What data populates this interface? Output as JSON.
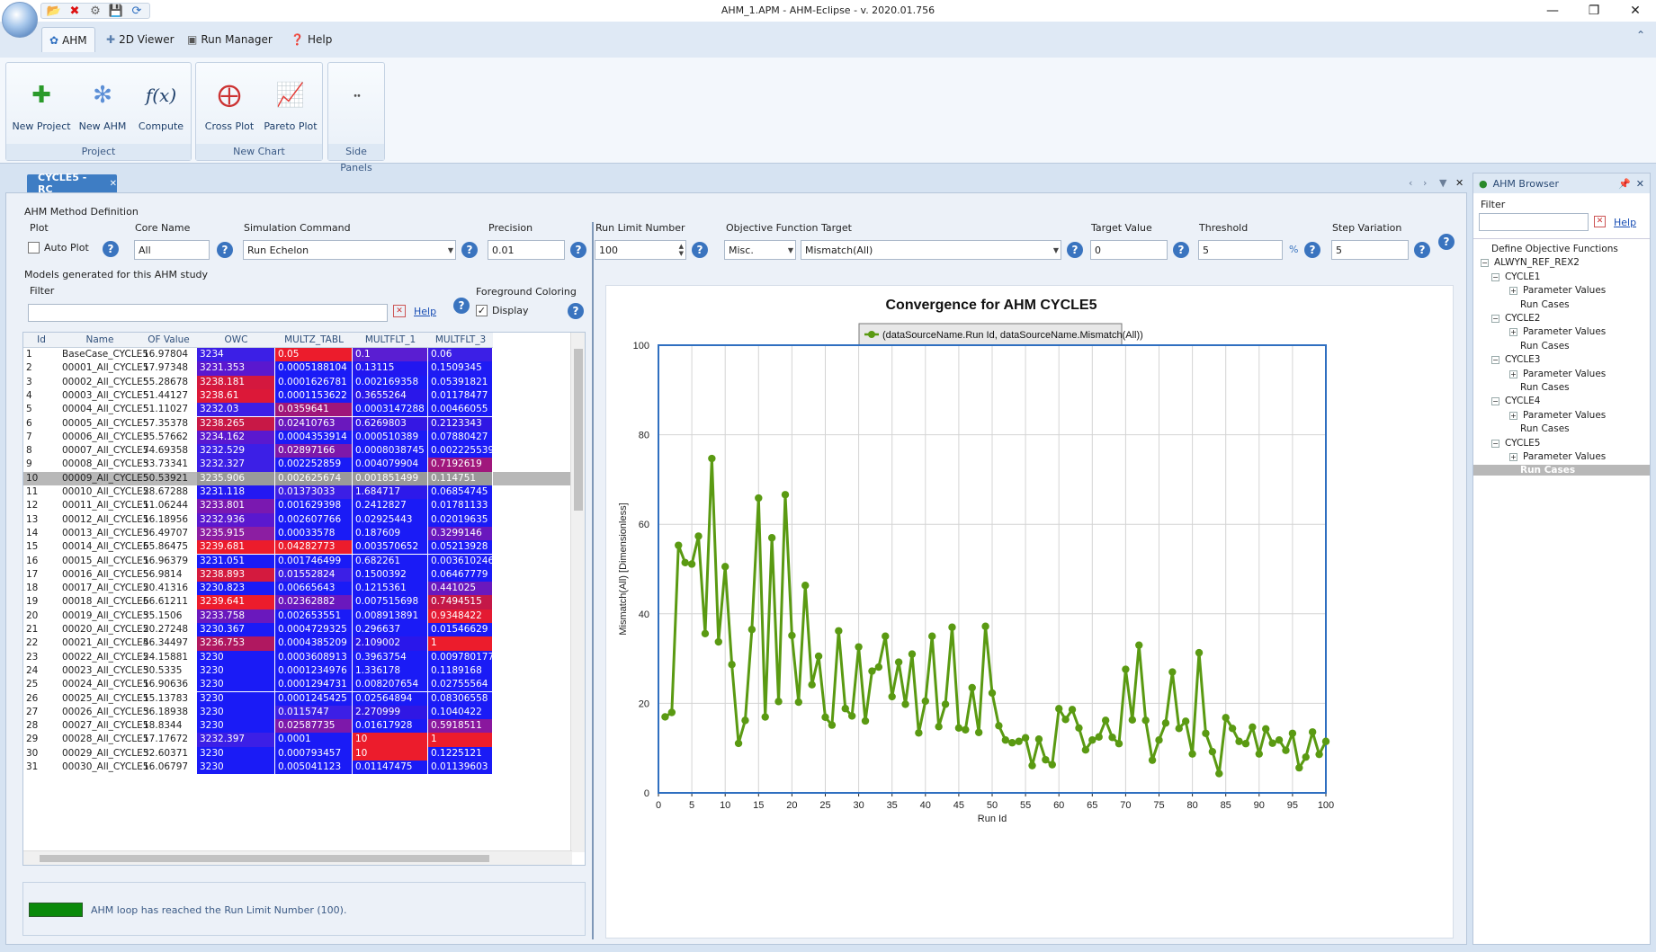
{
  "window": {
    "title": "AHM_1.APM - AHM-Eclipse - v. 2020.01.756"
  },
  "ribbon": {
    "tabs": [
      "AHM",
      "2D Viewer",
      "Run Manager",
      "Help"
    ],
    "groups": [
      {
        "label": "Project",
        "buttons": [
          "New Project",
          "New AHM",
          "Compute"
        ]
      },
      {
        "label": "New Chart",
        "buttons": [
          "Cross Plot",
          "Pareto Plot"
        ]
      },
      {
        "label": "Side Panels",
        "buttons": []
      }
    ]
  },
  "doc_tab": {
    "label": "CYCLE5 - RC"
  },
  "method": {
    "section_title": "AHM Method Definition",
    "plot_label": "Plot",
    "auto_plot_label": "Auto Plot",
    "core_name_label": "Core Name",
    "core_name_value": "All",
    "sim_cmd_label": "Simulation Command",
    "sim_cmd_value": "Run Echelon",
    "precision_label": "Precision",
    "precision_value": "0.01",
    "run_limit_label": "Run Limit Number",
    "run_limit_value": "100",
    "obj_target_label": "Objective Function Target",
    "obj_target_type": "Misc.",
    "obj_target_value": "Mismatch(All)",
    "target_value_label": "Target Value",
    "target_value": "0",
    "threshold_label": "Threshold",
    "threshold_value": "5",
    "threshold_unit": "%",
    "step_label": "Step Variation",
    "step_value": "5"
  },
  "models": {
    "section_title": "Models generated for this AHM study",
    "filter_label": "Filter",
    "filter_help": "Help",
    "fg_label": "Foreground Coloring",
    "display_label": "Display",
    "columns": [
      "Id",
      "Name",
      "OF Value",
      "OWC",
      "MULTZ_TABL",
      "MULTFLT_1",
      "MULTFLT_3"
    ],
    "rows": [
      [
        "1",
        "BaseCase_CYCLE5",
        "16.97804",
        "3234",
        "0.05",
        "0.1",
        "0.06"
      ],
      [
        "2",
        "00001_All_CYCLE5",
        "17.97348",
        "3231.353",
        "0.0005188104",
        "0.13115",
        "0.1509345"
      ],
      [
        "3",
        "00002_All_CYCLE5",
        "55.28678",
        "3238.181",
        "0.0001626781",
        "0.002169358",
        "0.05391821"
      ],
      [
        "4",
        "00003_All_CYCLE5",
        "51.44127",
        "3238.61",
        "0.0001153622",
        "0.3655264",
        "0.01178477"
      ],
      [
        "5",
        "00004_All_CYCLE5",
        "51.11027",
        "3232.03",
        "0.0359641",
        "0.0003147288",
        "0.00466055"
      ],
      [
        "6",
        "00005_All_CYCLE5",
        "57.35378",
        "3238.265",
        "0.02410763",
        "0.6269803",
        "0.2123343"
      ],
      [
        "7",
        "00006_All_CYCLE5",
        "35.57662",
        "3234.162",
        "0.0004353914",
        "0.000510389",
        "0.07880427"
      ],
      [
        "8",
        "00007_All_CYCLE5",
        "74.69358",
        "3232.529",
        "0.02897166",
        "0.0008038745",
        "0.002225539"
      ],
      [
        "9",
        "00008_All_CYCLE5",
        "33.73341",
        "3232.327",
        "0.002252859",
        "0.004079904",
        "0.7192619"
      ],
      [
        "10",
        "00009_All_CYCLE5",
        "50.53921",
        "3235.906",
        "0.002625674",
        "0.001851499",
        "0.114751"
      ],
      [
        "11",
        "00010_All_CYCLE5",
        "28.67288",
        "3231.118",
        "0.01373033",
        "1.684717",
        "0.06854745"
      ],
      [
        "12",
        "00011_All_CYCLE5",
        "11.06244",
        "3233.801",
        "0.001629398",
        "0.2412827",
        "0.01781133"
      ],
      [
        "13",
        "00012_All_CYCLE5",
        "16.18956",
        "3232.936",
        "0.002607766",
        "0.02925443",
        "0.02019635"
      ],
      [
        "14",
        "00013_All_CYCLE5",
        "36.49707",
        "3235.915",
        "0.00033578",
        "0.187609",
        "0.3299146"
      ],
      [
        "15",
        "00014_All_CYCLE5",
        "65.86475",
        "3239.681",
        "0.04282773",
        "0.003570652",
        "0.05213928"
      ],
      [
        "16",
        "00015_All_CYCLE5",
        "16.96379",
        "3231.051",
        "0.001746499",
        "0.682261",
        "0.003610246"
      ],
      [
        "17",
        "00016_All_CYCLE5",
        "56.9814",
        "3238.893",
        "0.01552824",
        "0.1500392",
        "0.06467779"
      ],
      [
        "18",
        "00017_All_CYCLE5",
        "20.41316",
        "3230.823",
        "0.00665643",
        "0.1215361",
        "0.441025"
      ],
      [
        "19",
        "00018_All_CYCLE5",
        "66.61211",
        "3239.641",
        "0.02362882",
        "0.007515698",
        "0.7494515"
      ],
      [
        "20",
        "00019_All_CYCLE5",
        "35.1506",
        "3233.758",
        "0.002653551",
        "0.008913891",
        "0.9348422"
      ],
      [
        "21",
        "00020_All_CYCLE5",
        "20.27248",
        "3230.367",
        "0.0004729325",
        "0.296637",
        "0.01546629"
      ],
      [
        "22",
        "00021_All_CYCLE5",
        "46.34497",
        "3236.753",
        "0.0004385209",
        "2.109002",
        "1"
      ],
      [
        "23",
        "00022_All_CYCLE5",
        "24.15881",
        "3230",
        "0.0003608913",
        "0.3963754",
        "0.009780177"
      ],
      [
        "24",
        "00023_All_CYCLE5",
        "30.5335",
        "3230",
        "0.0001234976",
        "1.336178",
        "0.1189168"
      ],
      [
        "25",
        "00024_All_CYCLE5",
        "16.90636",
        "3230",
        "0.0001294731",
        "0.008207654",
        "0.02755564"
      ],
      [
        "26",
        "00025_All_CYCLE5",
        "15.13783",
        "3230",
        "0.0001245425",
        "0.02564894",
        "0.08306558"
      ],
      [
        "27",
        "00026_All_CYCLE5",
        "36.18938",
        "3230",
        "0.0115747",
        "2.270999",
        "0.1040422"
      ],
      [
        "28",
        "00027_All_CYCLE5",
        "18.8344",
        "3230",
        "0.02587735",
        "0.01617928",
        "0.5918511"
      ],
      [
        "29",
        "00028_All_CYCLE5",
        "17.17672",
        "3232.397",
        "0.0001",
        "10",
        "1"
      ],
      [
        "30",
        "00029_All_CYCLE5",
        "32.60371",
        "3230",
        "0.000793457",
        "10",
        "0.1225121"
      ],
      [
        "31",
        "00030_All_CYCLE5",
        "16.06797",
        "3230",
        "0.005041123",
        "0.01147475",
        "0.01139603"
      ]
    ],
    "cell_colors": [
      [
        "#3c1fe6",
        "#ec1c2c",
        "#5a1ed2",
        "#3c1fe6"
      ],
      [
        "#5a18cf",
        "#1a1bf6",
        "#2217f0",
        "#1f1bf3"
      ],
      [
        "#d4183e",
        "#1a1bf6",
        "#1a1bf6",
        "#1a1bf6"
      ],
      [
        "#dc1838",
        "#1a1bf6",
        "#2a17ea",
        "#1a1bf6"
      ],
      [
        "#3c1fe6",
        "#9f167a",
        "#1a1bf6",
        "#1a1bf6"
      ],
      [
        "#c81846",
        "#6a18bd",
        "#3517e3",
        "#3017e4"
      ],
      [
        "#5a18cf",
        "#1a1bf6",
        "#1a1bf6",
        "#1a1bf6"
      ],
      [
        "#3c1fe6",
        "#7d18aa",
        "#1a1bf6",
        "#1a1bf6"
      ],
      [
        "#3c1fe6",
        "#1a1bf6",
        "#1a1bf6",
        "#a0177c"
      ],
      [
        "#9a9a9a",
        "#9a9a9a",
        "#9a9a9a",
        "#9a9a9a"
      ],
      [
        "#2318f2",
        "#3c1fe6",
        "#2d19ea",
        "#1a1bf6"
      ],
      [
        "#7a18b0",
        "#1a1bf6",
        "#1a1bf6",
        "#1a1bf6"
      ],
      [
        "#5a18cf",
        "#1a1bf6",
        "#1a1bf6",
        "#1a1bf6"
      ],
      [
        "#8c1ea2",
        "#1a1bf6",
        "#1a1bf6",
        "#6a18bd"
      ],
      [
        "#ec1c2c",
        "#ec1c2c",
        "#1a1bf6",
        "#1a1bf6"
      ],
      [
        "#1a1bf6",
        "#1a1bf6",
        "#1a1bf6",
        "#1a1bf6"
      ],
      [
        "#d41a3e",
        "#3c1fe6",
        "#1a1bf6",
        "#1a1bf6"
      ],
      [
        "#1a1bf6",
        "#1a1bf6",
        "#1a1bf6",
        "#6a18bd"
      ],
      [
        "#ec1c2c",
        "#6a18bd",
        "#1a1bf6",
        "#c41848"
      ],
      [
        "#6a18bd",
        "#1a1bf6",
        "#1a1bf6",
        "#e41a32"
      ],
      [
        "#1a1bf6",
        "#1a1bf6",
        "#1a1bf6",
        "#1a1bf6"
      ],
      [
        "#b01860",
        "#1a1bf6",
        "#2a17ea",
        "#ec1c2c"
      ],
      [
        "#1a1bf6",
        "#1a1bf6",
        "#1a1bf6",
        "#1a1bf6"
      ],
      [
        "#1a1bf6",
        "#1a1bf6",
        "#1a1bf6",
        "#1a1bf6"
      ],
      [
        "#1a1bf6",
        "#1a1bf6",
        "#1a1bf6",
        "#1a1bf6"
      ],
      [
        "#1a1bf6",
        "#1a1bf6",
        "#1a1bf6",
        "#1a1bf6"
      ],
      [
        "#1a1bf6",
        "#3c1fe6",
        "#3017e4",
        "#1a1bf6"
      ],
      [
        "#1a1bf6",
        "#7d18aa",
        "#1a1bf6",
        "#8a179e"
      ],
      [
        "#3c1fe6",
        "#1a1bf6",
        "#ec1c2c",
        "#ec1c2c"
      ],
      [
        "#1a1bf6",
        "#1a1bf6",
        "#ec1c2c",
        "#1a1bf6"
      ],
      [
        "#1a1bf6",
        "#1a1bf6",
        "#1a1bf6",
        "#1a1bf6"
      ]
    ],
    "selected_row": 10
  },
  "status": {
    "text": "AHM loop has reached the Run Limit Number (100).",
    "color": "#0a8a0a"
  },
  "browser": {
    "title": "AHM Browser",
    "filter_label": "Filter",
    "help": "Help",
    "items": [
      {
        "label": "Define Objective Functions",
        "level": 1,
        "exp": false
      },
      {
        "label": "ALWYN_REF_REX2",
        "level": 0,
        "exp": true
      },
      {
        "label": "CYCLE1",
        "level": 1,
        "exp": true
      },
      {
        "label": "Parameter Values",
        "level": 2,
        "exp": true
      },
      {
        "label": "Run Cases",
        "level": 3,
        "exp": false
      },
      {
        "label": "CYCLE2",
        "level": 1,
        "exp": true
      },
      {
        "label": "Parameter Values",
        "level": 2,
        "exp": true
      },
      {
        "label": "Run Cases",
        "level": 3,
        "exp": false
      },
      {
        "label": "CYCLE3",
        "level": 1,
        "exp": true
      },
      {
        "label": "Parameter Values",
        "level": 2,
        "exp": true
      },
      {
        "label": "Run Cases",
        "level": 3,
        "exp": false
      },
      {
        "label": "CYCLE4",
        "level": 1,
        "exp": true
      },
      {
        "label": "Parameter Values",
        "level": 2,
        "exp": true
      },
      {
        "label": "Run Cases",
        "level": 3,
        "exp": false
      },
      {
        "label": "CYCLE5",
        "level": 1,
        "exp": true
      },
      {
        "label": "Parameter Values",
        "level": 2,
        "exp": true
      },
      {
        "label": "Run Cases",
        "level": 3,
        "exp": false,
        "selected": true
      }
    ]
  },
  "chart_data": {
    "type": "line",
    "title": "Convergence for AHM CYCLE5",
    "legend": "(dataSourceName.Run Id, dataSourceName.Mismatch(All))",
    "xlabel": "Run Id",
    "ylabel": "Mismatch(All) [Dimensionless]",
    "xlim": [
      0,
      100
    ],
    "ylim": [
      0,
      100
    ],
    "xticks": [
      0,
      5,
      10,
      15,
      20,
      25,
      30,
      35,
      40,
      45,
      50,
      55,
      60,
      65,
      70,
      75,
      80,
      85,
      90,
      95,
      100
    ],
    "yticks": [
      0,
      20,
      40,
      60,
      80,
      100
    ],
    "line_color": "#5a9a12",
    "x": [
      1,
      2,
      3,
      4,
      5,
      6,
      7,
      8,
      9,
      10,
      11,
      12,
      13,
      14,
      15,
      16,
      17,
      18,
      19,
      20,
      21,
      22,
      23,
      24,
      25,
      26,
      27,
      28,
      29,
      30,
      31,
      32,
      33,
      34,
      35,
      36,
      37,
      38,
      39,
      40,
      41,
      42,
      43,
      44,
      45,
      46,
      47,
      48,
      49,
      50,
      51,
      52,
      53,
      54,
      55,
      56,
      57,
      58,
      59,
      60,
      61,
      62,
      63,
      64,
      65,
      66,
      67,
      68,
      69,
      70,
      71,
      72,
      73,
      74,
      75,
      76,
      77,
      78,
      79,
      80,
      81,
      82,
      83,
      84,
      85,
      86,
      87,
      88,
      89,
      90,
      91,
      92,
      93,
      94,
      95,
      96,
      97,
      98,
      99,
      100
    ],
    "y": [
      16.98,
      17.97,
      55.29,
      51.44,
      51.11,
      57.35,
      35.58,
      74.69,
      33.73,
      50.54,
      28.67,
      11.06,
      16.19,
      36.5,
      65.86,
      16.96,
      56.98,
      20.41,
      66.61,
      35.15,
      20.27,
      46.34,
      24.16,
      30.53,
      16.91,
      15.14,
      36.19,
      18.83,
      17.18,
      32.6,
      16.07,
      27.2,
      28.1,
      35,
      21.5,
      29.2,
      19.8,
      31,
      13.4,
      20.5,
      35,
      14.8,
      19.8,
      37,
      14.5,
      14.1,
      23.5,
      13.5,
      37.2,
      22.3,
      15,
      11.8,
      11.2,
      11.5,
      12.3,
      6.1,
      12,
      7.4,
      6.3,
      18.8,
      16.4,
      18.6,
      14.5,
      9.6,
      11.8,
      12.5,
      16.2,
      12.4,
      11,
      27.6,
      16.3,
      33,
      16.2,
      7.3,
      11.8,
      15.6,
      27,
      14.4,
      16,
      8.7,
      31.3,
      13.3,
      9.2,
      4.3,
      16.8,
      14.4,
      11.5,
      11,
      14.7,
      8.7,
      14.3,
      11.1,
      11.8,
      9.5,
      13.3,
      5.6,
      8,
      13.6,
      8.6,
      11.5
    ]
  }
}
